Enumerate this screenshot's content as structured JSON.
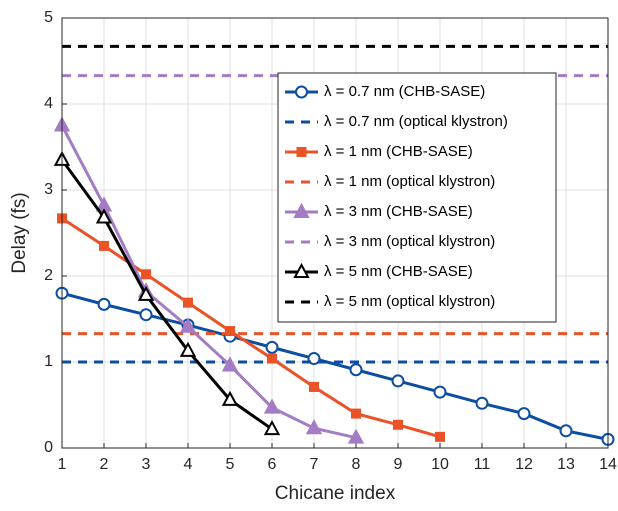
{
  "chart_data": {
    "type": "line",
    "xlabel": "Chicane index",
    "ylabel": "Delay (fs)",
    "x": [
      1,
      2,
      3,
      4,
      5,
      6,
      7,
      8,
      9,
      10,
      11,
      12,
      13,
      14
    ],
    "xlim": [
      1,
      14
    ],
    "xticks": [
      1,
      2,
      3,
      4,
      5,
      6,
      7,
      8,
      9,
      10,
      11,
      12,
      13,
      14
    ],
    "ylim": [
      0,
      5
    ],
    "yticks": [
      0,
      1,
      2,
      3,
      4,
      5
    ],
    "grid": true,
    "legend": "upper right",
    "series": [
      {
        "name": "λ = 0.7 nm (CHB-SASE)",
        "color": "#0c4ea2",
        "style": "solid",
        "marker": "circle",
        "marker_fill": "#ffffff",
        "values": [
          1.8,
          1.67,
          1.55,
          1.43,
          1.3,
          1.17,
          1.04,
          0.91,
          0.78,
          0.65,
          0.52,
          0.4,
          0.2,
          0.1
        ]
      },
      {
        "name": "λ = 0.7 nm (optical klystron)",
        "color": "#0c4ea2",
        "style": "dashed",
        "values": [
          1,
          1,
          1,
          1,
          1,
          1,
          1,
          1,
          1,
          1,
          1,
          1,
          1,
          1
        ]
      },
      {
        "name": "λ = 1 nm (CHB-SASE)",
        "color": "#ea5228",
        "style": "solid",
        "marker": "square",
        "marker_fill": "#ea5228",
        "values": [
          2.67,
          2.35,
          2.02,
          1.69,
          1.36,
          1.04,
          0.71,
          0.4,
          0.27,
          0.13,
          null,
          null,
          null,
          null
        ]
      },
      {
        "name": "λ = 1 nm (optical klystron)",
        "color": "#ea5228",
        "style": "dashed",
        "values": [
          1.33,
          1.33,
          1.33,
          1.33,
          1.33,
          1.33,
          1.33,
          1.33,
          1.33,
          1.33,
          1.33,
          1.33,
          1.33,
          1.33
        ]
      },
      {
        "name": "λ = 3 nm (CHB-SASE)",
        "color": "#a47cc4",
        "style": "solid",
        "marker": "triangle",
        "marker_fill": "#a47cc4",
        "values": [
          3.75,
          2.82,
          1.82,
          1.41,
          0.96,
          0.47,
          0.23,
          0.12,
          null,
          null,
          null,
          null,
          null,
          null
        ]
      },
      {
        "name": "λ = 3 nm (optical klystron)",
        "color": "#a47cc4",
        "style": "dashed",
        "values": [
          4.33,
          4.33,
          4.33,
          4.33,
          4.33,
          4.33,
          4.33,
          4.33,
          4.33,
          4.33,
          4.33,
          4.33,
          4.33,
          4.33
        ]
      },
      {
        "name": "λ = 5 nm (CHB-SASE)",
        "color": "#000000",
        "style": "solid",
        "marker": "triangle",
        "marker_fill": "#ffffff",
        "values": [
          3.35,
          2.68,
          1.78,
          1.13,
          0.56,
          0.22,
          null,
          null,
          null,
          null,
          null,
          null,
          null,
          null
        ]
      },
      {
        "name": "λ = 5 nm (optical klystron)",
        "color": "#000000",
        "style": "dashed",
        "values": [
          4.67,
          4.67,
          4.67,
          4.67,
          4.67,
          4.67,
          4.67,
          4.67,
          4.67,
          4.67,
          4.67,
          4.67,
          4.67,
          4.67
        ]
      }
    ]
  }
}
